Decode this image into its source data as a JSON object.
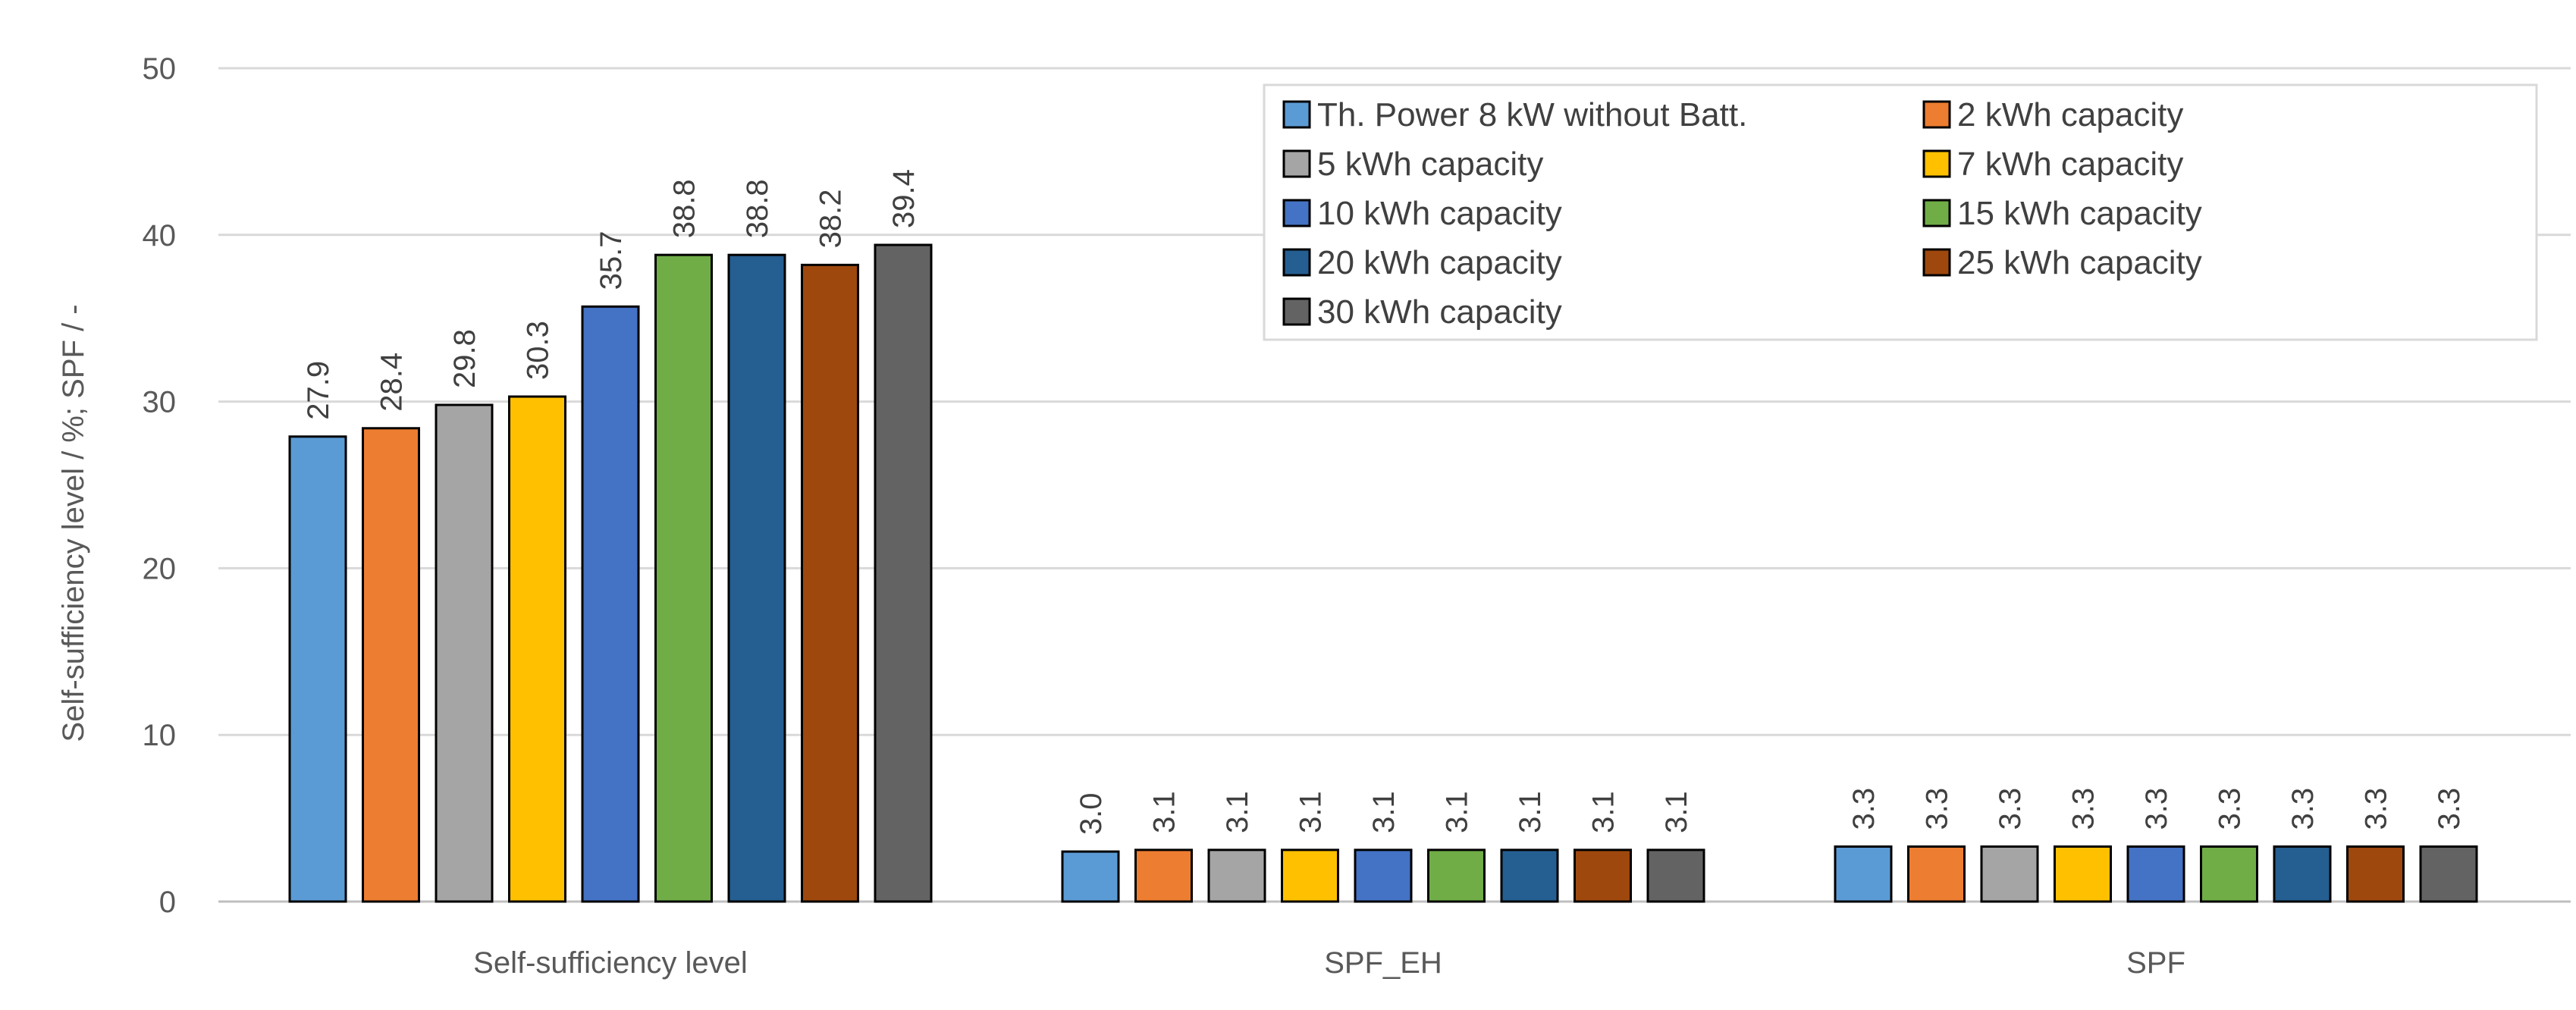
{
  "chart_data": {
    "type": "bar",
    "categories": [
      "Self-sufficiency level",
      "SPF_EH",
      "SPF"
    ],
    "ylabel": "Self-sufficiency level / %; SPF / -",
    "xlabel": "",
    "title": "",
    "ylim": [
      0,
      50
    ],
    "yticks": [
      "0",
      "10",
      "20",
      "30",
      "40",
      "50"
    ],
    "grid": true,
    "legend_position": "top-right",
    "series": [
      {
        "name": "Th. Power 8 kW without Batt.",
        "color": "#5B9BD5",
        "values": [
          27.9,
          3.0,
          3.3
        ],
        "labels": [
          "27.9",
          "3.0",
          "3.3"
        ]
      },
      {
        "name": "2 kWh capacity",
        "color": "#ED7D31",
        "values": [
          28.4,
          3.1,
          3.3
        ],
        "labels": [
          "28.4",
          "3.1",
          "3.3"
        ]
      },
      {
        "name": "5 kWh capacity",
        "color": "#A5A5A5",
        "values": [
          29.8,
          3.1,
          3.3
        ],
        "labels": [
          "29.8",
          "3.1",
          "3.3"
        ]
      },
      {
        "name": "7 kWh capacity",
        "color": "#FFC000",
        "values": [
          30.3,
          3.1,
          3.3
        ],
        "labels": [
          "30.3",
          "3.1",
          "3.3"
        ]
      },
      {
        "name": "10 kWh capacity",
        "color": "#4472C4",
        "values": [
          35.7,
          3.1,
          3.3
        ],
        "labels": [
          "35.7",
          "3.1",
          "3.3"
        ]
      },
      {
        "name": "15 kWh capacity",
        "color": "#70AD47",
        "values": [
          38.8,
          3.1,
          3.3
        ],
        "labels": [
          "38.8",
          "3.1",
          "3.3"
        ]
      },
      {
        "name": "20 kWh capacity",
        "color": "#255E91",
        "values": [
          38.8,
          3.1,
          3.3
        ],
        "labels": [
          "38.8",
          "3.1",
          "3.3"
        ]
      },
      {
        "name": "25 kWh capacity",
        "color": "#9E480E",
        "values": [
          38.2,
          3.1,
          3.3
        ],
        "labels": [
          "38.2",
          "3.1",
          "3.3"
        ]
      },
      {
        "name": "30 kWh capacity",
        "color": "#636363",
        "values": [
          39.4,
          3.1,
          3.3
        ],
        "labels": [
          "39.4",
          "3.1",
          "3.3"
        ]
      }
    ]
  }
}
